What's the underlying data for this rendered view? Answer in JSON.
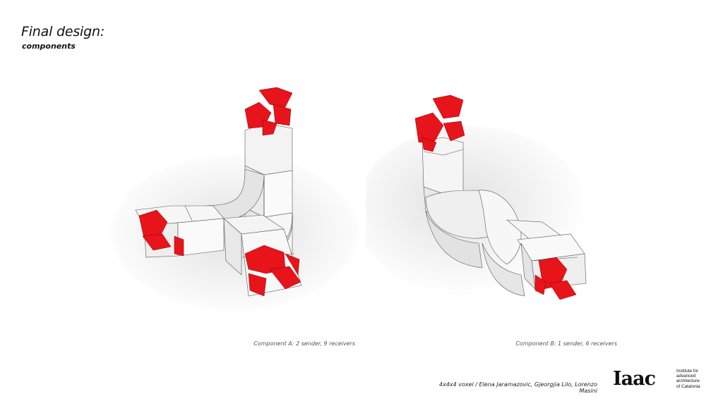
{
  "slide": {
    "title": "Final design:",
    "subtitle": "components"
  },
  "figures": [
    {
      "caption": "Component A: 2 sender, 9 receivers"
    },
    {
      "caption": "Component B: 1 sender, 6 receivers"
    }
  ],
  "footer": {
    "credits": "4x4x4 voxel / Elena Jaramazovic, Gjeorgjia Lilo, Lorenzo Masini",
    "logo_mark": "Iaac",
    "logo_lines": [
      "Institute for",
      "advanced",
      "architecture",
      "of Catalonia"
    ]
  },
  "colors": {
    "accent_red": "#e8141b",
    "module_white": "#f4f4f4",
    "shadow_gray": "#d9d9d9"
  }
}
